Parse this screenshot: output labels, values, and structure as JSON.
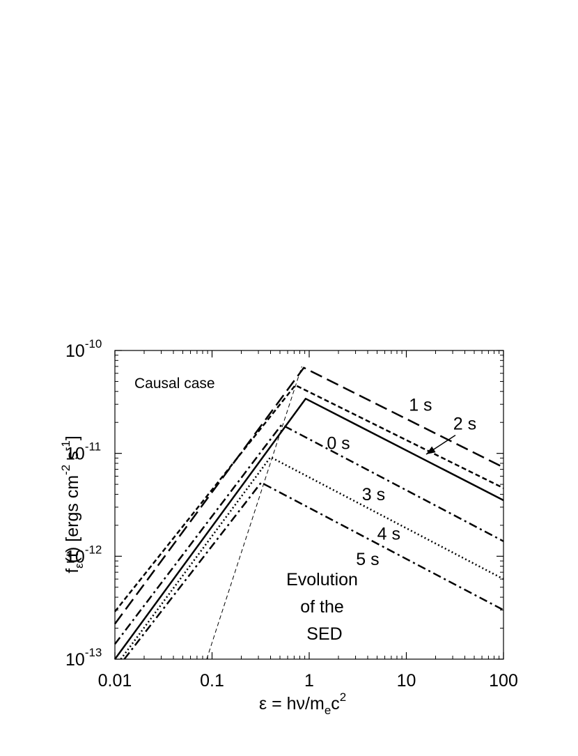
{
  "chart_data": {
    "type": "line",
    "x_scale": "log",
    "y_scale": "log",
    "xlim": [
      0.01,
      100
    ],
    "ylim": [
      1e-13,
      1e-10
    ],
    "x_ticks": [
      {
        "value": 0.01,
        "label": "0.01"
      },
      {
        "value": 0.1,
        "label": "0.1"
      },
      {
        "value": 1,
        "label": "1"
      },
      {
        "value": 10,
        "label": "10"
      },
      {
        "value": 100,
        "label": "100"
      }
    ],
    "y_ticks": [
      {
        "value": 1e-13,
        "base": "10",
        "exp": "-13"
      },
      {
        "value": 1e-12,
        "base": "10",
        "exp": "-12"
      },
      {
        "value": 1e-11,
        "base": "10",
        "exp": "-11"
      },
      {
        "value": 1e-10,
        "base": "10",
        "exp": "-10"
      }
    ],
    "xlabel": {
      "main": "ε  = hν/m",
      "sub": "e",
      "tail": "c",
      "sup": "2"
    },
    "ylabel": {
      "f": "f",
      "sub": "ε",
      "mid": "(t) [ergs cm",
      "sup1": "-2",
      "s": " s",
      "sup2": "-1",
      "end": "]"
    },
    "grid": false,
    "series": [
      {
        "name": "0 s",
        "style": "solid",
        "x": [
          0.01,
          0.92,
          100
        ],
        "y": [
          1e-13,
          3.4e-11,
          3.5e-12
        ]
      },
      {
        "name": "1 s",
        "style": "long-dash",
        "x": [
          0.01,
          0.88,
          100
        ],
        "y": [
          2.2e-13,
          6.8e-11,
          7.3e-12
        ]
      },
      {
        "name": "2 s",
        "style": "short-dash",
        "x": [
          0.01,
          0.72,
          100
        ],
        "y": [
          2.9e-13,
          4.6e-11,
          4.6e-12
        ]
      },
      {
        "name": "3 s",
        "style": "dash-dot",
        "x": [
          0.01,
          0.52,
          100
        ],
        "y": [
          1.4e-13,
          1.9e-11,
          1.4e-12
        ]
      },
      {
        "name": "4 s",
        "style": "dotted",
        "x": [
          0.0115,
          0.4,
          100
        ],
        "y": [
          1e-13,
          9.2e-12,
          6e-13
        ]
      },
      {
        "name": "5 s",
        "style": "dash-dot",
        "x": [
          0.0125,
          0.32,
          100
        ],
        "y": [
          1e-13,
          5.2e-12,
          3e-13
        ]
      },
      {
        "name": "",
        "style": "thin-dash",
        "x": [
          0.088,
          0.84
        ],
        "y": [
          1e-13,
          7e-11
        ]
      }
    ],
    "labels": [
      {
        "text": "1 s",
        "x": 14,
        "y": 2.6e-11
      },
      {
        "text": "2 s",
        "x": 40,
        "y": 1.7e-11
      },
      {
        "text": "0 s",
        "x": 2.0,
        "y": 1.1e-11
      },
      {
        "text": "3 s",
        "x": 4.6,
        "y": 3.5e-12
      },
      {
        "text": "4 s",
        "x": 6.6,
        "y": 1.45e-12
      },
      {
        "text": "5 s",
        "x": 4.0,
        "y": 8.2e-13
      }
    ],
    "annotations": [
      {
        "id": "causal",
        "text": "Causal case"
      },
      {
        "id": "evolution",
        "lines": [
          "Evolution",
          "of the",
          "SED"
        ]
      }
    ],
    "arrow": {
      "from": [
        32,
        1.5e-11
      ],
      "to": [
        16,
        9.8e-12
      ]
    }
  }
}
